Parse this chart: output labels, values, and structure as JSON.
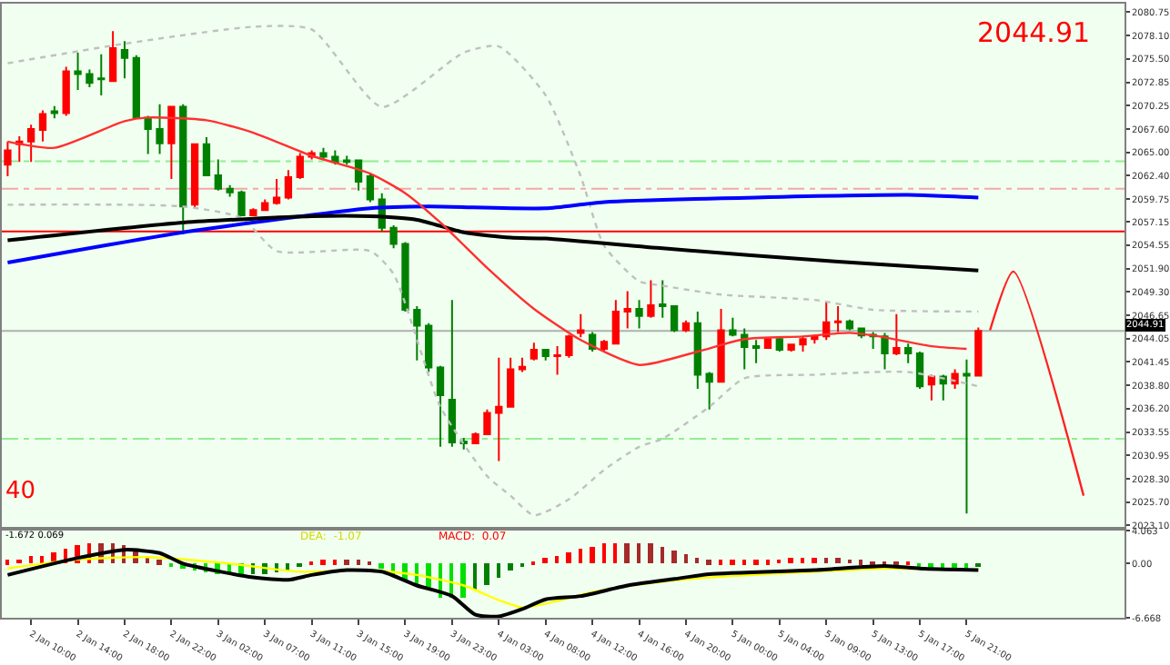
{
  "chart_data": [
    {
      "type": "candlestick",
      "categories": [
        null,
        null,
        null,
        null,
        null,
        null,
        null,
        null,
        null,
        null,
        null,
        null,
        null,
        null,
        null,
        null,
        null,
        null,
        null,
        null,
        null,
        null,
        null,
        null,
        null,
        null,
        null,
        null,
        null,
        null,
        null,
        null,
        null,
        null,
        null,
        null,
        null,
        null,
        null,
        null,
        null,
        null,
        null,
        null,
        null,
        null,
        null,
        null,
        null,
        null,
        null,
        null,
        null,
        null,
        null,
        null,
        null,
        null,
        null,
        null,
        null,
        null,
        null,
        null,
        null,
        null,
        null,
        null,
        null,
        null,
        null,
        null,
        null,
        null,
        null,
        null,
        null,
        null,
        null,
        null,
        null,
        null,
        null,
        null,
        null,
        null,
        null,
        null,
        null,
        null,
        null,
        null,
        null,
        null,
        null,
        null
      ],
      "ohlc": [
        [
          2063.6,
          2066.2,
          2062.3,
          2065.2
        ],
        [
          2065.9,
          2066.8,
          2063.9,
          2066.2
        ],
        [
          2066.2,
          2068.1,
          2063.9,
          2067.6
        ],
        [
          2067.5,
          2069.7,
          2066.2,
          2069.3
        ],
        [
          2069.6,
          2070.2,
          2068.8,
          2069.4
        ],
        [
          2069.4,
          2074.6,
          2069.1,
          2074.1
        ],
        [
          2074.1,
          2076.2,
          2072.0,
          2073.8
        ],
        [
          2073.8,
          2074.3,
          2072.3,
          2072.8
        ],
        [
          2073.3,
          2076.0,
          2071.4,
          2073.2
        ],
        [
          2073.0,
          2078.6,
          2073.0,
          2076.7
        ],
        [
          2076.5,
          2077.5,
          2073.3,
          2075.6
        ],
        [
          2075.6,
          2075.9,
          2068.8,
          2068.9
        ],
        [
          2068.9,
          2069.1,
          2064.8,
          2067.6
        ],
        [
          2067.6,
          2070.4,
          2064.8,
          2066.0
        ],
        [
          2066.0,
          2070.1,
          2062.0,
          2070.1
        ],
        [
          2070.1,
          2070.4,
          2055.8,
          2058.9
        ],
        [
          2059.1,
          2065.9,
          2058.7,
          2065.9
        ],
        [
          2065.9,
          2066.7,
          2062.3,
          2062.4
        ],
        [
          2062.4,
          2064.2,
          2060.7,
          2060.9
        ],
        [
          2060.9,
          2061.3,
          2060.0,
          2060.5
        ],
        [
          2060.5,
          2060.7,
          2057.8,
          2057.9
        ],
        [
          2057.9,
          2058.7,
          2057.8,
          2058.5
        ],
        [
          2058.5,
          2059.7,
          2058.4,
          2059.3
        ],
        [
          2059.3,
          2062.0,
          2059.1,
          2059.9
        ],
        [
          2059.9,
          2063.0,
          2059.7,
          2062.2
        ],
        [
          2062.2,
          2064.9,
          2062.0,
          2064.5
        ],
        [
          2064.5,
          2065.2,
          2064.2,
          2064.9
        ],
        [
          2064.9,
          2065.5,
          2064.2,
          2064.5
        ],
        [
          2064.5,
          2065.2,
          2063.6,
          2063.9
        ],
        [
          2064.1,
          2064.6,
          2063.6,
          2063.9
        ],
        [
          2064.1,
          2064.2,
          2060.7,
          2061.7
        ],
        [
          2062.3,
          2062.6,
          2059.4,
          2059.7
        ],
        [
          2059.7,
          2060.4,
          2056.1,
          2056.5
        ],
        [
          2056.5,
          2056.8,
          2054.2,
          2054.7
        ],
        [
          2054.7,
          2054.9,
          2047.1,
          2047.3
        ],
        [
          2047.3,
          2047.7,
          2041.6,
          2045.5
        ],
        [
          2045.5,
          2045.8,
          2040.3,
          2040.8
        ],
        [
          2040.8,
          2041.0,
          2031.9,
          2037.7
        ],
        [
          2037.2,
          2048.4,
          2031.9,
          2032.4
        ],
        [
          2032.5,
          2032.9,
          2031.6,
          2032.3
        ],
        [
          2032.3,
          2033.5,
          2032.2,
          2033.3
        ],
        [
          2033.3,
          2036.1,
          2033.2,
          2035.7
        ],
        [
          2035.7,
          2041.9,
          2030.3,
          2036.4
        ],
        [
          2036.4,
          2041.9,
          2036.4,
          2040.6
        ],
        [
          2040.6,
          2041.9,
          2040.3,
          2040.9
        ],
        [
          2041.8,
          2043.6,
          2041.6,
          2042.8
        ],
        [
          2042.8,
          2042.9,
          2041.6,
          2042.1
        ],
        [
          2042.1,
          2043.2,
          2040.0,
          2042.2
        ],
        [
          2042.2,
          2044.5,
          2041.9,
          2044.3
        ],
        [
          2044.7,
          2046.8,
          2044.2,
          2045.0
        ],
        [
          2044.5,
          2044.8,
          2042.6,
          2042.9
        ],
        [
          2042.9,
          2043.9,
          2042.6,
          2043.7
        ],
        [
          2043.5,
          2048.4,
          2043.5,
          2047.1
        ],
        [
          2047.1,
          2049.4,
          2045.2,
          2047.4
        ],
        [
          2047.4,
          2048.4,
          2045.2,
          2046.6
        ],
        [
          2046.6,
          2050.6,
          2046.4,
          2047.8
        ],
        [
          2047.9,
          2050.6,
          2046.4,
          2047.7
        ],
        [
          2047.7,
          2047.8,
          2044.8,
          2045.0
        ],
        [
          2045.0,
          2046.1,
          2044.8,
          2045.8
        ],
        [
          2045.8,
          2047.1,
          2038.4,
          2040.0
        ],
        [
          2040.1,
          2040.3,
          2036.1,
          2039.2
        ],
        [
          2039.2,
          2047.4,
          2039.2,
          2045.0
        ],
        [
          2045.0,
          2046.4,
          2044.3,
          2044.5
        ],
        [
          2044.5,
          2045.2,
          2040.6,
          2043.1
        ],
        [
          2043.2,
          2043.9,
          2041.3,
          2043.0
        ],
        [
          2043.0,
          2044.2,
          2042.9,
          2044.0
        ],
        [
          2044.0,
          2044.2,
          2042.6,
          2042.8
        ],
        [
          2042.8,
          2043.5,
          2042.6,
          2043.4
        ],
        [
          2043.4,
          2044.3,
          2042.6,
          2044.0
        ],
        [
          2044.0,
          2044.5,
          2043.5,
          2044.3
        ],
        [
          2044.3,
          2048.1,
          2043.9,
          2045.9
        ],
        [
          2045.9,
          2047.7,
          2044.8,
          2046.0
        ],
        [
          2046.0,
          2046.2,
          2045.0,
          2045.2
        ],
        [
          2045.2,
          2045.3,
          2044.1,
          2044.4
        ],
        [
          2044.5,
          2044.8,
          2042.9,
          2044.3
        ],
        [
          2044.3,
          2044.7,
          2040.6,
          2042.4
        ],
        [
          2042.4,
          2046.8,
          2042.2,
          2043.0
        ],
        [
          2043.0,
          2043.5,
          2041.3,
          2042.4
        ],
        [
          2042.4,
          2042.6,
          2038.4,
          2038.7
        ],
        [
          2038.9,
          2040.0,
          2037.1,
          2039.8
        ],
        [
          2039.8,
          2040.0,
          2037.1,
          2039.0
        ],
        [
          2039.0,
          2040.6,
          2038.4,
          2040.1
        ],
        [
          2040.1,
          2041.7,
          2024.4,
          2039.9
        ],
        [
          2039.9,
          2045.3,
          2039.8,
          2044.91
        ],
        null,
        null,
        null,
        null,
        null,
        null,
        null,
        null,
        null,
        null,
        null,
        null
      ],
      "colors": [
        "#ff0000",
        "#ff0000",
        "#ff0000",
        "#ff0000",
        "#008000",
        "#ff0000",
        "#008000",
        "#008000",
        "#008000",
        "#ff0000",
        "#008000",
        "#008000",
        "#008000",
        "#008000",
        "#ff0000",
        "#008000",
        "#ff0000",
        "#008000",
        "#008000",
        "#008000",
        "#008000",
        "#ff0000",
        "#ff0000",
        "#ff0000",
        "#ff0000",
        "#ff0000",
        "#ff0000",
        "#008000",
        "#008000",
        "#008000",
        "#008000",
        "#008000",
        "#008000",
        "#008000",
        "#008000",
        "#008000",
        "#008000",
        "#008000",
        "#008000",
        "#008000",
        "#ff0000",
        "#ff0000",
        "#ff0000",
        "#ff0000",
        "#ff0000",
        "#ff0000",
        "#008000",
        "#ff0000",
        "#ff0000",
        "#ff0000",
        "#008000",
        "#ff0000",
        "#ff0000",
        "#ff0000",
        "#008000",
        "#ff0000",
        "#008000",
        "#008000",
        "#ff0000",
        "#008000",
        "#008000",
        "#ff0000",
        "#008000",
        "#008000",
        "#008000",
        "#ff0000",
        "#008000",
        "#ff0000",
        "#ff0000",
        "#ff0000",
        "#ff0000",
        "#ff0000",
        "#008000",
        "#008000",
        "#008000",
        "#008000",
        "#ff0000",
        "#008000",
        "#008000",
        "#ff0000",
        "#008000",
        "#ff0000",
        "#008000",
        "#ff0000",
        null,
        null,
        null,
        null,
        null,
        null,
        null,
        null,
        null,
        null,
        null,
        null
      ],
      "series": [
        {
          "type": "line",
          "color": "#c0c0c0",
          "line_style": "dotted",
          "values": [
            2075.0,
            null,
            null,
            null,
            null,
            null,
            null,
            null,
            null,
            null,
            2077.2,
            null,
            null,
            null,
            null,
            null,
            null,
            null,
            null,
            null,
            null,
            2079.1,
            null,
            null,
            null,
            null,
            2078.8,
            null,
            null,
            null,
            null,
            null,
            2070.1,
            null,
            null,
            null,
            null,
            null,
            null,
            2076.2,
            null,
            null,
            2076.9,
            null,
            null,
            null,
            2071.4,
            null,
            null,
            2062.3,
            null,
            2054.5,
            null,
            null,
            2050.5,
            null,
            2050.0,
            null,
            null,
            null,
            null,
            2049.0,
            null,
            null,
            null,
            null,
            null,
            null,
            null,
            2048.4,
            null,
            null,
            null,
            null,
            2047.3,
            null,
            null,
            null,
            null,
            null,
            null,
            null,
            null,
            2047.1,
            null,
            null,
            null,
            null,
            null,
            null,
            null,
            null,
            null,
            null,
            null,
            null
          ]
        },
        {
          "type": "line",
          "color": "#c0c0c0",
          "line_style": "dotted",
          "values": [
            2059.1,
            null,
            null,
            null,
            null,
            null,
            null,
            null,
            null,
            null,
            null,
            null,
            null,
            null,
            null,
            2058.9,
            null,
            null,
            null,
            null,
            2057.6,
            null,
            null,
            2053.9,
            null,
            null,
            null,
            null,
            null,
            null,
            null,
            2053.9,
            null,
            2051.3,
            null,
            null,
            null,
            2036.4,
            null,
            null,
            null,
            2028.6,
            null,
            2026.4,
            null,
            2024.2,
            null,
            null,
            2026.0,
            null,
            null,
            2029.3,
            null,
            null,
            2031.9,
            null,
            2032.8,
            null,
            null,
            null,
            2036.4,
            null,
            null,
            2039.6,
            null,
            null,
            null,
            null,
            null,
            2040.0,
            null,
            null,
            null,
            null,
            null,
            null,
            null,
            2040.3,
            null,
            null,
            null,
            null,
            null,
            2038.7,
            null,
            null,
            null,
            null,
            null,
            null,
            null,
            null,
            null,
            null,
            null,
            null
          ]
        },
        {
          "type": "line",
          "color": "#0000ff",
          "values": [
            2052.6,
            null,
            null,
            null,
            null,
            null,
            null,
            null,
            null,
            null,
            null,
            null,
            null,
            null,
            null,
            2056.0,
            null,
            null,
            null,
            null,
            null,
            null,
            null,
            null,
            null,
            null,
            null,
            null,
            null,
            null,
            null,
            2058.7,
            null,
            null,
            null,
            null,
            2058.9,
            null,
            null,
            null,
            null,
            null,
            null,
            null,
            null,
            null,
            2058.7,
            null,
            null,
            null,
            null,
            2059.4,
            null,
            null,
            null,
            null,
            null,
            null,
            null,
            null,
            null,
            null,
            null,
            null,
            null,
            null,
            null,
            null,
            null,
            null,
            null,
            null,
            null,
            null,
            null,
            null,
            null,
            2060.2,
            null,
            null,
            null,
            null,
            null,
            2059.9,
            null,
            null,
            null,
            null,
            null,
            null,
            null,
            null,
            null,
            null,
            null,
            null
          ]
        },
        {
          "type": "line",
          "color": "#000000",
          "values": [
            2055.1,
            null,
            null,
            null,
            null,
            null,
            null,
            null,
            null,
            null,
            null,
            null,
            null,
            null,
            null,
            2057.1,
            null,
            null,
            null,
            null,
            null,
            null,
            null,
            null,
            null,
            null,
            2057.8,
            null,
            null,
            null,
            null,
            2057.8,
            null,
            null,
            null,
            2057.4,
            null,
            null,
            null,
            2056.0,
            null,
            null,
            null,
            2055.4,
            null,
            null,
            2055.3,
            null,
            null,
            null,
            null,
            null,
            null,
            null,
            null,
            null,
            2054.2,
            null,
            null,
            null,
            null,
            null,
            null,
            null,
            null,
            null,
            null,
            null,
            null,
            null,
            null,
            2052.7,
            null,
            null,
            null,
            null,
            null,
            null,
            null,
            null,
            null,
            null,
            null,
            2051.7,
            null,
            null,
            null,
            null,
            null,
            null,
            null,
            null,
            null,
            null,
            null,
            null
          ]
        },
        {
          "type": "line",
          "color": "#ff3030",
          "values": [
            2066.2,
            null,
            null,
            null,
            2065.5,
            null,
            null,
            null,
            null,
            null,
            2068.5,
            null,
            2068.9,
            null,
            null,
            null,
            null,
            2068.6,
            null,
            null,
            null,
            2067.2,
            null,
            null,
            null,
            null,
            2064.6,
            null,
            null,
            null,
            null,
            2062.6,
            null,
            null,
            2060.4,
            null,
            null,
            2057.1,
            null,
            null,
            null,
            2052.0,
            null,
            null,
            null,
            2047.4,
            null,
            null,
            null,
            2043.9,
            null,
            null,
            null,
            null,
            2041.1,
            null,
            null,
            null,
            null,
            2042.6,
            null,
            null,
            null,
            2044.0,
            null,
            null,
            null,
            null,
            2044.3,
            null,
            null,
            null,
            2044.7,
            null,
            null,
            2044.2,
            null,
            null,
            null,
            2043.2,
            null,
            null,
            2042.9,
            null,
            null,
            null,
            null,
            null,
            null,
            null,
            null,
            null,
            null,
            null,
            null,
            null
          ]
        },
        {
          "type": "line",
          "color": "#ff2020",
          "values": [
            null,
            null,
            null,
            null,
            null,
            null,
            null,
            null,
            null,
            null,
            null,
            null,
            null,
            null,
            null,
            null,
            null,
            null,
            null,
            null,
            null,
            null,
            null,
            null,
            null,
            null,
            null,
            null,
            null,
            null,
            null,
            null,
            null,
            null,
            null,
            null,
            null,
            null,
            null,
            null,
            null,
            null,
            null,
            null,
            null,
            null,
            null,
            null,
            null,
            null,
            null,
            null,
            null,
            null,
            null,
            null,
            null,
            null,
            null,
            null,
            null,
            null,
            null,
            null,
            null,
            null,
            null,
            null,
            null,
            null,
            null,
            null,
            null,
            null,
            null,
            null,
            null,
            null,
            null,
            null,
            null,
            null,
            null,
            null,
            2045.0,
            null,
            2051.6,
            null,
            null,
            null,
            null,
            null,
            2026.4,
            null,
            null,
            null
          ]
        }
      ],
      "ref_lines": [
        {
          "axis": "y",
          "value": 2064.0,
          "color": "#90ee90",
          "line_style": "dashed"
        },
        {
          "axis": "y",
          "value": 2060.9,
          "color": "#f4a8a8",
          "line_style": "dashed"
        },
        {
          "axis": "y",
          "value": 2056.1,
          "color": "#ff0000",
          "line_style": "solid"
        },
        {
          "axis": "y",
          "value": 2044.91,
          "color": "#b0b0b0",
          "line_style": "solid",
          "label": "2044.91"
        },
        {
          "axis": "y",
          "value": 2032.8,
          "color": "#90ee90",
          "line_style": "dashed"
        }
      ],
      "annotations": [
        "2044.91",
        "40"
      ],
      "ylim": [
        2022.9,
        2081.7
      ],
      "yticks": [
        {
          "value": 2080.75,
          "label": "2080.75"
        },
        {
          "value": 2078.1,
          "label": "2078.10"
        },
        {
          "value": 2075.5,
          "label": "2075.50"
        },
        {
          "value": 2072.85,
          "label": "2072.85"
        },
        {
          "value": 2070.25,
          "label": "2070.25"
        },
        {
          "value": 2067.6,
          "label": "2067.60"
        },
        {
          "value": 2065.0,
          "label": "2065.00"
        },
        {
          "value": 2062.4,
          "label": "2062.40"
        },
        {
          "value": 2059.75,
          "label": "2059.75"
        },
        {
          "value": 2057.15,
          "label": "2057.15"
        },
        {
          "value": 2054.55,
          "label": "2054.55"
        },
        {
          "value": 2051.9,
          "label": "2051.90"
        },
        {
          "value": 2049.3,
          "label": "2049.30"
        },
        {
          "value": 2046.65,
          "label": "2046.65"
        },
        {
          "value": 2044.05,
          "label": "2044.05"
        },
        {
          "value": 2041.45,
          "label": "2041.45"
        },
        {
          "value": 2038.8,
          "label": "2038.80"
        },
        {
          "value": 2036.2,
          "label": "2036.20"
        },
        {
          "value": 2033.55,
          "label": "2033.55"
        },
        {
          "value": 2030.95,
          "label": "2030.95"
        },
        {
          "value": 2028.3,
          "label": "2028.30"
        },
        {
          "value": 2025.7,
          "label": "2025.70"
        },
        {
          "value": 2023.1,
          "label": "2023.10"
        }
      ],
      "tick_labels": "y",
      "grid": false
    },
    {
      "type": "bar",
      "categories": [
        null,
        null,
        "2 Jan 10:00",
        null,
        null,
        null,
        "2 Jan 14:00",
        null,
        null,
        null,
        "2 Jan 18:00",
        null,
        null,
        null,
        "2 Jan 22:00",
        null,
        null,
        null,
        "3 Jan 02:00",
        null,
        null,
        null,
        "3 Jan 07:00",
        null,
        null,
        null,
        "3 Jan 11:00",
        null,
        null,
        null,
        "3 Jan 15:00",
        null,
        null,
        null,
        "3 Jan 19:00",
        null,
        null,
        null,
        "3 Jan 23:00",
        null,
        null,
        null,
        "4 Jan 03:00",
        null,
        null,
        null,
        "4 Jan 08:00",
        null,
        null,
        null,
        "4 Jan 12:00",
        null,
        null,
        null,
        "4 Jan 16:00",
        null,
        null,
        null,
        "4 Jan 20:00",
        null,
        null,
        null,
        "5 Jan 00:00",
        null,
        null,
        null,
        "5 Jan 04:00",
        null,
        null,
        null,
        "5 Jan 09:00",
        null,
        null,
        null,
        "5 Jan 13:00",
        null,
        null,
        null,
        "5 Jan 17:00",
        null,
        null,
        null,
        "5 Jan 21:00",
        null,
        null,
        null,
        null,
        null,
        null,
        null,
        null,
        null,
        null,
        null,
        null,
        null
      ],
      "values": [
        0.4,
        0.5,
        0.9,
        1.0,
        1.4,
        1.9,
        2.2,
        2.4,
        2.4,
        2.4,
        2.2,
        1.7,
        1.0,
        0.4,
        -0.2,
        -0.7,
        -0.9,
        -1.0,
        -1.2,
        -1.4,
        -1.5,
        -1.4,
        -1.3,
        -1.1,
        -0.8,
        -0.4,
        0.3,
        0.4,
        0.4,
        0.4,
        0.4,
        0.2,
        -0.6,
        -1.2,
        -2.0,
        -2.6,
        -3.1,
        -4.2,
        -4.2,
        -4.2,
        -3.4,
        -2.6,
        -1.7,
        -0.9,
        -0.4,
        0.2,
        0.6,
        1.0,
        1.4,
        1.9,
        2.1,
        2.4,
        2.6,
        2.6,
        2.6,
        2.4,
        2.1,
        1.7,
        1.1,
        0.6,
        0.4,
        0.4,
        0.4,
        0.4,
        0.4,
        0.4,
        0.5,
        0.6,
        0.6,
        0.7,
        0.7,
        0.6,
        0.5,
        0.4,
        0.2,
        0.1,
        0.1,
        0.2,
        -0.4,
        -0.6,
        -0.6,
        -0.6,
        -0.6,
        -0.3,
        null,
        null,
        null,
        null,
        null,
        null,
        null,
        null,
        null,
        null,
        null,
        null
      ],
      "colors": [
        "#ff0000",
        "#ff0000",
        "#ff0000",
        "#ff0000",
        "#ff0000",
        "#ff0000",
        "#ff0000",
        "#ff0000",
        "#a52a2a",
        "#a52a2a",
        "#a52a2a",
        "#a52a2a",
        "#a52a2a",
        "#a52a2a",
        "#00e000",
        "#00e000",
        "#00e000",
        "#00e000",
        "#00e000",
        "#00e000",
        "#00e000",
        "#008000",
        "#008000",
        "#008000",
        "#008000",
        "#008000",
        "#ff0000",
        "#ff0000",
        "#ff0000",
        "#a52a2a",
        "#a52a2a",
        "#a52a2a",
        "#00e000",
        "#00e000",
        "#00e000",
        "#00e000",
        "#00e000",
        "#00e000",
        "#00e000",
        "#00e000",
        "#008000",
        "#008000",
        "#008000",
        "#008000",
        "#008000",
        "#ff0000",
        "#ff0000",
        "#ff0000",
        "#ff0000",
        "#ff0000",
        "#ff0000",
        "#ff0000",
        "#ff0000",
        "#a52a2a",
        "#a52a2a",
        "#a52a2a",
        "#a52a2a",
        "#a52a2a",
        "#a52a2a",
        "#a52a2a",
        "#a52a2a",
        "#ff0000",
        "#ff0000",
        "#ff0000",
        "#ff0000",
        "#ff0000",
        "#ff0000",
        "#ff0000",
        "#ff0000",
        "#ff0000",
        "#a52a2a",
        "#a52a2a",
        "#a52a2a",
        "#a52a2a",
        "#a52a2a",
        "#a52a2a",
        "#a52a2a",
        "#ff0000",
        "#00e000",
        "#00e000",
        "#00e000",
        "#00e000",
        "#00e000",
        "#008000",
        null,
        null,
        null,
        null,
        null,
        null,
        null,
        null,
        null,
        null,
        null,
        null
      ],
      "series": [
        {
          "type": "line",
          "color": "#ffff00",
          "values": [
            -0.6,
            null,
            null,
            null,
            null,
            null,
            0.5,
            null,
            null,
            null,
            null,
            null,
            0.8,
            null,
            null,
            null,
            null,
            null,
            null,
            0.0,
            null,
            null,
            null,
            null,
            null,
            -1.0,
            null,
            null,
            null,
            null,
            null,
            -0.8,
            null,
            null,
            null,
            -1.4,
            null,
            null,
            null,
            -2.7,
            null,
            null,
            -4.5,
            null,
            -5.4,
            null,
            null,
            -4.6,
            null,
            null,
            -3.5,
            null,
            null,
            null,
            null,
            -2.4,
            null,
            null,
            null,
            null,
            -1.7,
            null,
            null,
            null,
            null,
            null,
            null,
            null,
            null,
            -1.0,
            null,
            null,
            null,
            null,
            null,
            -0.6,
            null,
            null,
            null,
            null,
            null,
            null,
            null,
            -0.8,
            null,
            null,
            null,
            null,
            null,
            null,
            null,
            null,
            null,
            null,
            null,
            null
          ]
        },
        {
          "type": "line",
          "color": "#000000",
          "values": [
            -1.4,
            null,
            null,
            null,
            null,
            null,
            0.7,
            null,
            null,
            null,
            1.7,
            null,
            null,
            1.3,
            null,
            0.0,
            null,
            null,
            null,
            null,
            null,
            -1.7,
            null,
            null,
            -2.0,
            null,
            -1.4,
            null,
            null,
            -0.8,
            null,
            null,
            -1.0,
            null,
            null,
            -2.7,
            null,
            null,
            -4.0,
            null,
            -6.3,
            null,
            -6.5,
            null,
            -5.6,
            null,
            -4.4,
            null,
            null,
            -4.0,
            null,
            null,
            null,
            -2.7,
            null,
            null,
            null,
            -1.9,
            null,
            null,
            -1.3,
            null,
            null,
            null,
            null,
            null,
            null,
            null,
            null,
            -0.8,
            null,
            null,
            null,
            null,
            null,
            -0.3,
            null,
            null,
            -0.6,
            null,
            null,
            null,
            null,
            -0.8,
            null,
            null,
            null,
            null,
            null,
            null,
            null,
            null,
            null,
            null,
            null,
            null
          ]
        }
      ],
      "annotations": [
        "-1.672 0.069",
        "DEA:  -1.07",
        "MACD:  0.07"
      ],
      "ylim": [
        -6.668,
        4.063
      ],
      "yticks": [
        {
          "value": 4.063,
          "label": "4.063"
        },
        {
          "value": 0,
          "label": "0.00"
        },
        {
          "value": -6.668,
          "label": "-6.668"
        }
      ],
      "grid": false
    }
  ]
}
